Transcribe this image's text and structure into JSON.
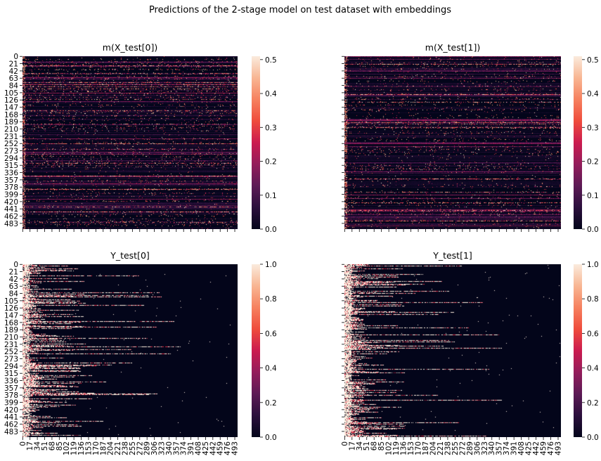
{
  "figure": {
    "suptitle": "Predictions of the 2-stage model on test dataset with embeddings"
  },
  "colormap": {
    "name": "rocket",
    "stops": [
      "#03051a",
      "#2b0f3c",
      "#5c1a55",
      "#931c5b",
      "#cb1b4f",
      "#ef4c3c",
      "#f6815f",
      "#f8b693",
      "#faebdd"
    ]
  },
  "chart_data": [
    {
      "type": "heatmap",
      "title": "m(X_test[0])",
      "rows": 500,
      "cols": 500,
      "ytick_labels": [
        "0",
        "21",
        "42",
        "63",
        "84",
        "105",
        "126",
        "147",
        "168",
        "189",
        "210",
        "231",
        "252",
        "273",
        "294",
        "315",
        "336",
        "357",
        "378",
        "399",
        "420",
        "441",
        "462",
        "483"
      ],
      "xtick_labels_visible": false,
      "colorbar": {
        "range": [
          0,
          0.51
        ],
        "ticks": [
          "0.0",
          "0.1",
          "0.2",
          "0.3",
          "0.4",
          "0.5"
        ]
      },
      "value_description": "sparse predicted probabilities, mostly near 0 with scattered bright points up to ~0.5"
    },
    {
      "type": "heatmap",
      "title": "m(X_test[1])",
      "rows": 500,
      "cols": 500,
      "ytick_labels_visible": false,
      "xtick_labels_visible": false,
      "colorbar": {
        "range": [
          0,
          0.51
        ],
        "ticks": [
          "0.0",
          "0.1",
          "0.2",
          "0.3",
          "0.4",
          "0.5"
        ]
      },
      "value_description": "sparse predicted probabilities, mostly near 0 with scattered bright points up to ~0.5"
    },
    {
      "type": "heatmap",
      "title": "Y_test[0]",
      "rows": 500,
      "cols": 500,
      "ytick_labels": [
        "0",
        "21",
        "42",
        "63",
        "84",
        "105",
        "126",
        "147",
        "168",
        "189",
        "210",
        "231",
        "252",
        "273",
        "294",
        "315",
        "336",
        "357",
        "378",
        "399",
        "420",
        "441",
        "462",
        "483"
      ],
      "xtick_labels": [
        "0",
        "17",
        "34",
        "51",
        "68",
        "85",
        "102",
        "119",
        "136",
        "153",
        "170",
        "187",
        "204",
        "221",
        "238",
        "255",
        "272",
        "289",
        "306",
        "323",
        "340",
        "357",
        "374",
        "391",
        "408",
        "425",
        "442",
        "459",
        "476",
        "493"
      ],
      "colorbar": {
        "range": [
          0,
          1
        ],
        "ticks": [
          "0.0",
          "0.2",
          "0.4",
          "0.6",
          "0.8",
          "1.0"
        ]
      },
      "value_description": "binary targets (0/1); rows have bright runs starting at column 0 of varying length"
    },
    {
      "type": "heatmap",
      "title": "Y_test[1]",
      "rows": 500,
      "cols": 500,
      "ytick_labels_visible": false,
      "xtick_labels": [
        "0",
        "17",
        "34",
        "51",
        "68",
        "85",
        "102",
        "119",
        "136",
        "153",
        "170",
        "187",
        "204",
        "221",
        "238",
        "255",
        "272",
        "289",
        "306",
        "323",
        "340",
        "357",
        "374",
        "391",
        "408",
        "425",
        "442",
        "459",
        "476",
        "493"
      ],
      "colorbar": {
        "range": [
          0,
          1
        ],
        "ticks": [
          "0.0",
          "0.2",
          "0.4",
          "0.6",
          "0.8",
          "1.0"
        ]
      },
      "value_description": "binary targets (0/1); rows have bright runs starting at column 0 of varying length"
    }
  ]
}
